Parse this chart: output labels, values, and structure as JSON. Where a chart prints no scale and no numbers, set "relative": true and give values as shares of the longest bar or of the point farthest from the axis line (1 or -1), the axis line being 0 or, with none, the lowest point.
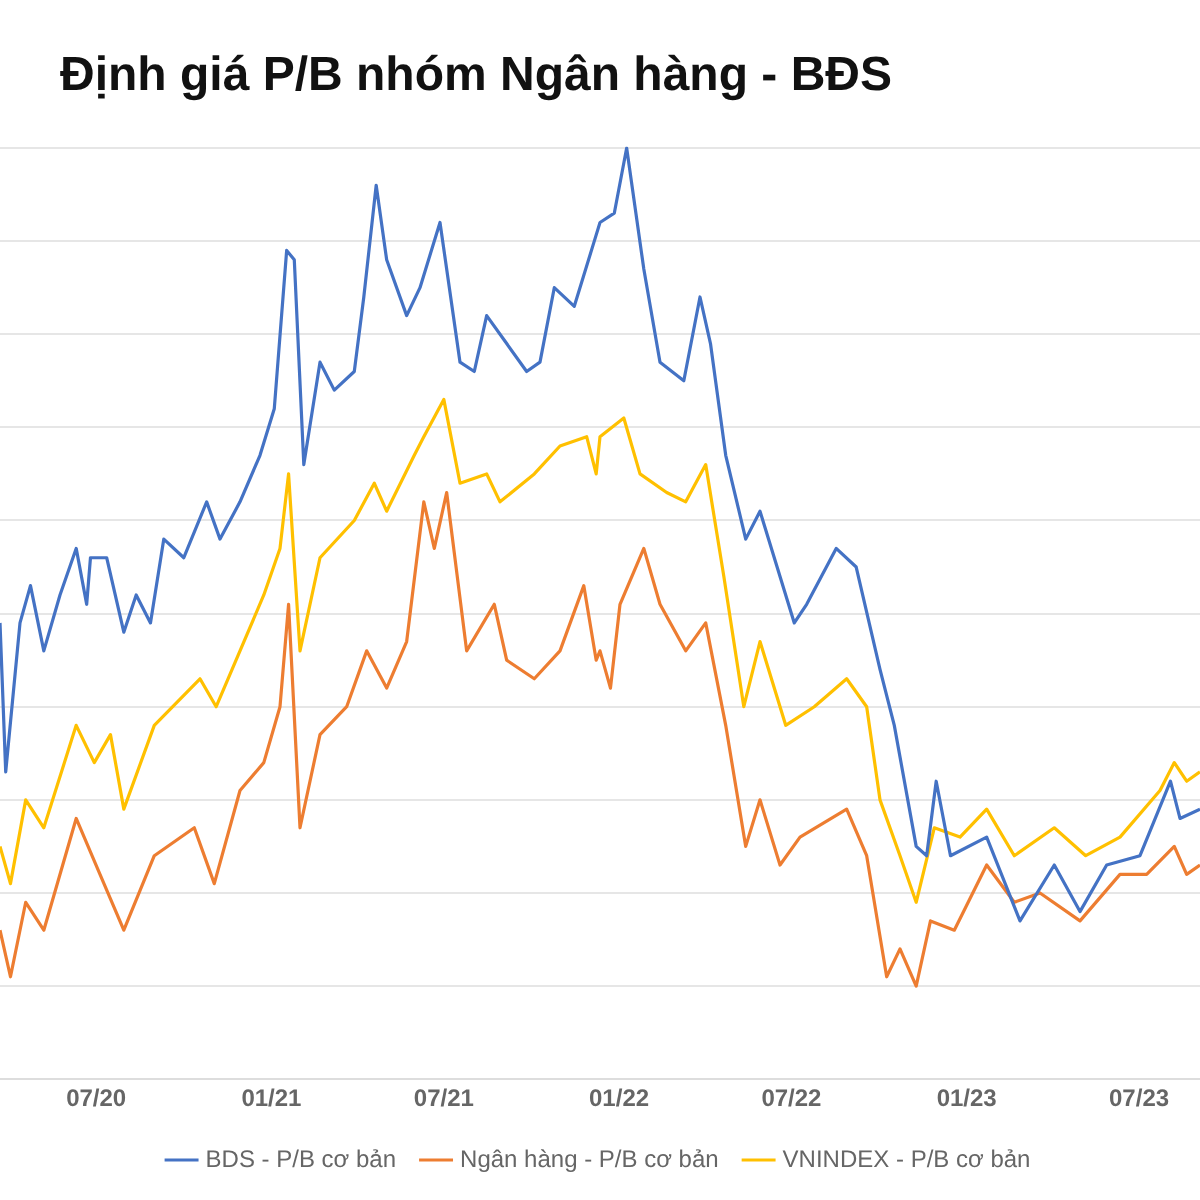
{
  "chart_data": {
    "type": "line",
    "title": "Định giá P/B nhóm Ngân hàng - BĐS",
    "relative": true,
    "grid": "y",
    "legend": "bottom",
    "marker": "none",
    "line_style": "solid",
    "xlim": [
      "2020-03-22",
      "2023-09-03"
    ],
    "xticks": [
      {
        "value": "2020-07-01",
        "label": "07/20"
      },
      {
        "value": "2021-01-01",
        "label": "01/21"
      },
      {
        "value": "2021-07-01",
        "label": "07/21"
      },
      {
        "value": "2022-01-01",
        "label": "01/22"
      },
      {
        "value": "2022-07-01",
        "label": "07/22"
      },
      {
        "value": "2023-01-01",
        "label": "01/23"
      },
      {
        "value": "2023-07-01",
        "label": "07/23"
      }
    ],
    "series": [
      {
        "name": "BDS - P/B cơ bản",
        "color": "#4472c4",
        "x": [
          "2020-03-22",
          "2020-03-28",
          "2020-04-12",
          "2020-04-23",
          "2020-05-07",
          "2020-05-24",
          "2020-06-10",
          "2020-06-21",
          "2020-06-25",
          "2020-07-12",
          "2020-07-30",
          "2020-08-12",
          "2020-08-27",
          "2020-09-10",
          "2020-10-01",
          "2020-10-25",
          "2020-11-08",
          "2020-11-29",
          "2020-12-20",
          "2021-01-04",
          "2021-01-17",
          "2021-01-25",
          "2021-02-04",
          "2021-02-21",
          "2021-03-08",
          "2021-03-29",
          "2021-04-08",
          "2021-04-21",
          "2021-05-02",
          "2021-05-23",
          "2021-06-06",
          "2021-06-27",
          "2021-07-18",
          "2021-08-02",
          "2021-08-15",
          "2021-09-05",
          "2021-09-26",
          "2021-10-10",
          "2021-10-25",
          "2021-11-15",
          "2021-12-06",
          "2021-12-12",
          "2021-12-27",
          "2022-01-09",
          "2022-01-27",
          "2022-02-13",
          "2022-03-10",
          "2022-03-27",
          "2022-04-07",
          "2022-04-23",
          "2022-05-14",
          "2022-05-29",
          "2022-07-04",
          "2022-07-17",
          "2022-08-17",
          "2022-09-07",
          "2022-10-02",
          "2022-10-17",
          "2022-11-09",
          "2022-11-20",
          "2022-11-30",
          "2022-12-15",
          "2023-01-22",
          "2023-02-26",
          "2023-04-03",
          "2023-04-30",
          "2023-05-28",
          "2023-07-02",
          "2023-08-03",
          "2023-08-13",
          "2023-09-03"
        ],
        "values": [
          0.49,
          0.33,
          0.49,
          0.53,
          0.46,
          0.52,
          0.57,
          0.51,
          0.56,
          0.56,
          0.48,
          0.52,
          0.49,
          0.58,
          0.56,
          0.62,
          0.58,
          0.62,
          0.67,
          0.72,
          0.89,
          0.88,
          0.66,
          0.77,
          0.74,
          0.76,
          0.84,
          0.96,
          0.88,
          0.82,
          0.85,
          0.92,
          0.77,
          0.76,
          0.82,
          0.79,
          0.76,
          0.77,
          0.85,
          0.83,
          0.9,
          0.92,
          0.93,
          1,
          0.87,
          0.77,
          0.75,
          0.84,
          0.79,
          0.67,
          0.58,
          0.61,
          0.49,
          0.51,
          0.57,
          0.55,
          0.44,
          0.38,
          0.25,
          0.24,
          0.32,
          0.24,
          0.26,
          0.17,
          0.23,
          0.18,
          0.23,
          0.24,
          0.32,
          0.28,
          0.29
        ]
      },
      {
        "name": "Ngân hàng - P/B cơ bản",
        "color": "#ed7d31",
        "x": [
          "2020-03-22",
          "2020-04-02",
          "2020-04-18",
          "2020-05-07",
          "2020-06-10",
          "2020-07-05",
          "2020-07-30",
          "2020-08-31",
          "2020-10-12",
          "2020-11-02",
          "2020-11-29",
          "2020-12-24",
          "2021-01-10",
          "2021-01-19",
          "2021-01-31",
          "2021-02-21",
          "2021-03-21",
          "2021-04-11",
          "2021-05-02",
          "2021-05-23",
          "2021-06-10",
          "2021-06-21",
          "2021-07-04",
          "2021-07-25",
          "2021-08-23",
          "2021-09-05",
          "2021-10-04",
          "2021-10-31",
          "2021-11-25",
          "2021-12-08",
          "2021-12-12",
          "2021-12-23",
          "2022-01-02",
          "2022-01-27",
          "2022-02-13",
          "2022-03-12",
          "2022-04-02",
          "2022-04-23",
          "2022-05-14",
          "2022-05-29",
          "2022-06-19",
          "2022-07-10",
          "2022-08-28",
          "2022-09-18",
          "2022-10-09",
          "2022-10-23",
          "2022-11-09",
          "2022-11-24",
          "2022-12-19",
          "2023-01-22",
          "2023-02-20",
          "2023-03-19",
          "2023-04-30",
          "2023-06-11",
          "2023-07-09",
          "2023-08-07",
          "2023-08-20",
          "2023-09-03"
        ],
        "values": [
          0.16,
          0.11,
          0.19,
          0.16,
          0.28,
          0.22,
          0.16,
          0.24,
          0.27,
          0.21,
          0.31,
          0.34,
          0.4,
          0.51,
          0.27,
          0.37,
          0.4,
          0.46,
          0.42,
          0.47,
          0.62,
          0.57,
          0.63,
          0.46,
          0.51,
          0.45,
          0.43,
          0.46,
          0.53,
          0.45,
          0.46,
          0.42,
          0.51,
          0.57,
          0.51,
          0.46,
          0.49,
          0.38,
          0.25,
          0.3,
          0.23,
          0.26,
          0.29,
          0.24,
          0.11,
          0.14,
          0.1,
          0.17,
          0.16,
          0.23,
          0.19,
          0.2,
          0.17,
          0.22,
          0.22,
          0.25,
          0.22,
          0.23
        ]
      },
      {
        "name": "VNINDEX - P/B cơ bản",
        "color": "#ffc000",
        "x": [
          "2020-03-22",
          "2020-04-02",
          "2020-04-18",
          "2020-05-07",
          "2020-06-10",
          "2020-06-29",
          "2020-07-16",
          "2020-07-30",
          "2020-08-31",
          "2020-10-18",
          "2020-11-04",
          "2020-11-29",
          "2020-12-24",
          "2021-01-10",
          "2021-01-19",
          "2021-01-31",
          "2021-02-21",
          "2021-03-29",
          "2021-04-19",
          "2021-05-02",
          "2021-05-31",
          "2021-06-10",
          "2021-07-01",
          "2021-07-18",
          "2021-08-15",
          "2021-08-29",
          "2021-10-04",
          "2021-10-31",
          "2021-11-28",
          "2021-12-08",
          "2021-12-12",
          "2022-01-06",
          "2022-01-23",
          "2022-02-20",
          "2022-03-12",
          "2022-04-02",
          "2022-04-21",
          "2022-05-12",
          "2022-05-29",
          "2022-06-25",
          "2022-07-25",
          "2022-08-28",
          "2022-09-18",
          "2022-10-02",
          "2022-10-23",
          "2022-11-09",
          "2022-11-28",
          "2022-12-25",
          "2023-01-22",
          "2023-02-20",
          "2023-04-03",
          "2023-05-06",
          "2023-06-11",
          "2023-07-23",
          "2023-08-07",
          "2023-08-20",
          "2023-09-03"
        ],
        "values": [
          0.25,
          0.21,
          0.3,
          0.27,
          0.38,
          0.34,
          0.37,
          0.29,
          0.38,
          0.43,
          0.4,
          0.46,
          0.52,
          0.57,
          0.65,
          0.46,
          0.56,
          0.6,
          0.64,
          0.61,
          0.67,
          0.69,
          0.73,
          0.64,
          0.65,
          0.62,
          0.65,
          0.68,
          0.69,
          0.65,
          0.69,
          0.71,
          0.65,
          0.63,
          0.62,
          0.66,
          0.54,
          0.4,
          0.47,
          0.38,
          0.4,
          0.43,
          0.4,
          0.3,
          0.24,
          0.19,
          0.27,
          0.26,
          0.29,
          0.24,
          0.27,
          0.24,
          0.26,
          0.31,
          0.34,
          0.32,
          0.33
        ]
      }
    ]
  }
}
